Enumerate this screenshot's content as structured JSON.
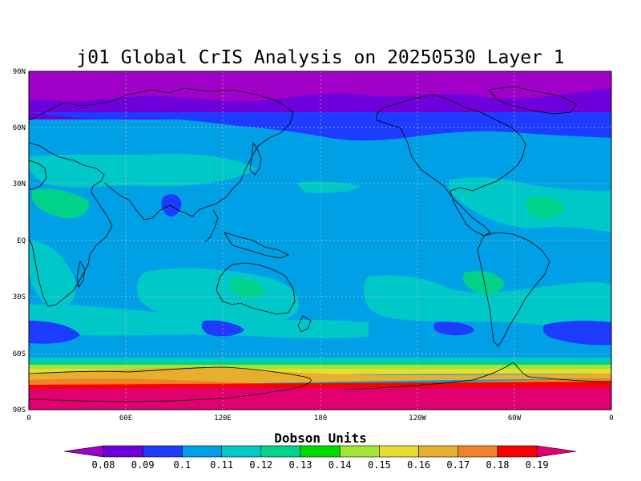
{
  "title": "j01 Global CrIS Analysis on 20250530 Layer 1",
  "units": "Dobson Units",
  "y_axis": {
    "ticks": [
      "90N",
      "60N",
      "30N",
      "EQ",
      "30S",
      "60S",
      "90S"
    ],
    "values": [
      90,
      60,
      30,
      0,
      -30,
      -60,
      -90
    ]
  },
  "x_axis": {
    "ticks": [
      "0",
      "60E",
      "120E",
      "180",
      "120W",
      "60W",
      "0"
    ],
    "values": [
      0,
      60,
      120,
      180,
      240,
      300,
      360
    ]
  },
  "colorbar": {
    "levels": [
      "0.08",
      "0.09",
      "0.1",
      "0.11",
      "0.12",
      "0.13",
      "0.14",
      "0.15",
      "0.16",
      "0.17",
      "0.18",
      "0.19"
    ],
    "colors": [
      "#a000c8",
      "#6e00dc",
      "#1e3cff",
      "#00a0e6",
      "#00c8c8",
      "#00d28c",
      "#00dc00",
      "#a0e632",
      "#e6dc32",
      "#e6af2d",
      "#f08228",
      "#fa0000",
      "#e00070"
    ]
  },
  "colors": {
    "v008": "#a000c8",
    "v009": "#6e00dc",
    "v010": "#1e3cff",
    "v011": "#00a0e6",
    "v012": "#00c8c8",
    "v013": "#00d28c",
    "v014": "#00dc00",
    "v015": "#a0e632",
    "v016": "#e6dc32",
    "v017": "#e6af2d",
    "v018": "#f08228",
    "v019": "#fa0000",
    "v020": "#e00070"
  }
}
